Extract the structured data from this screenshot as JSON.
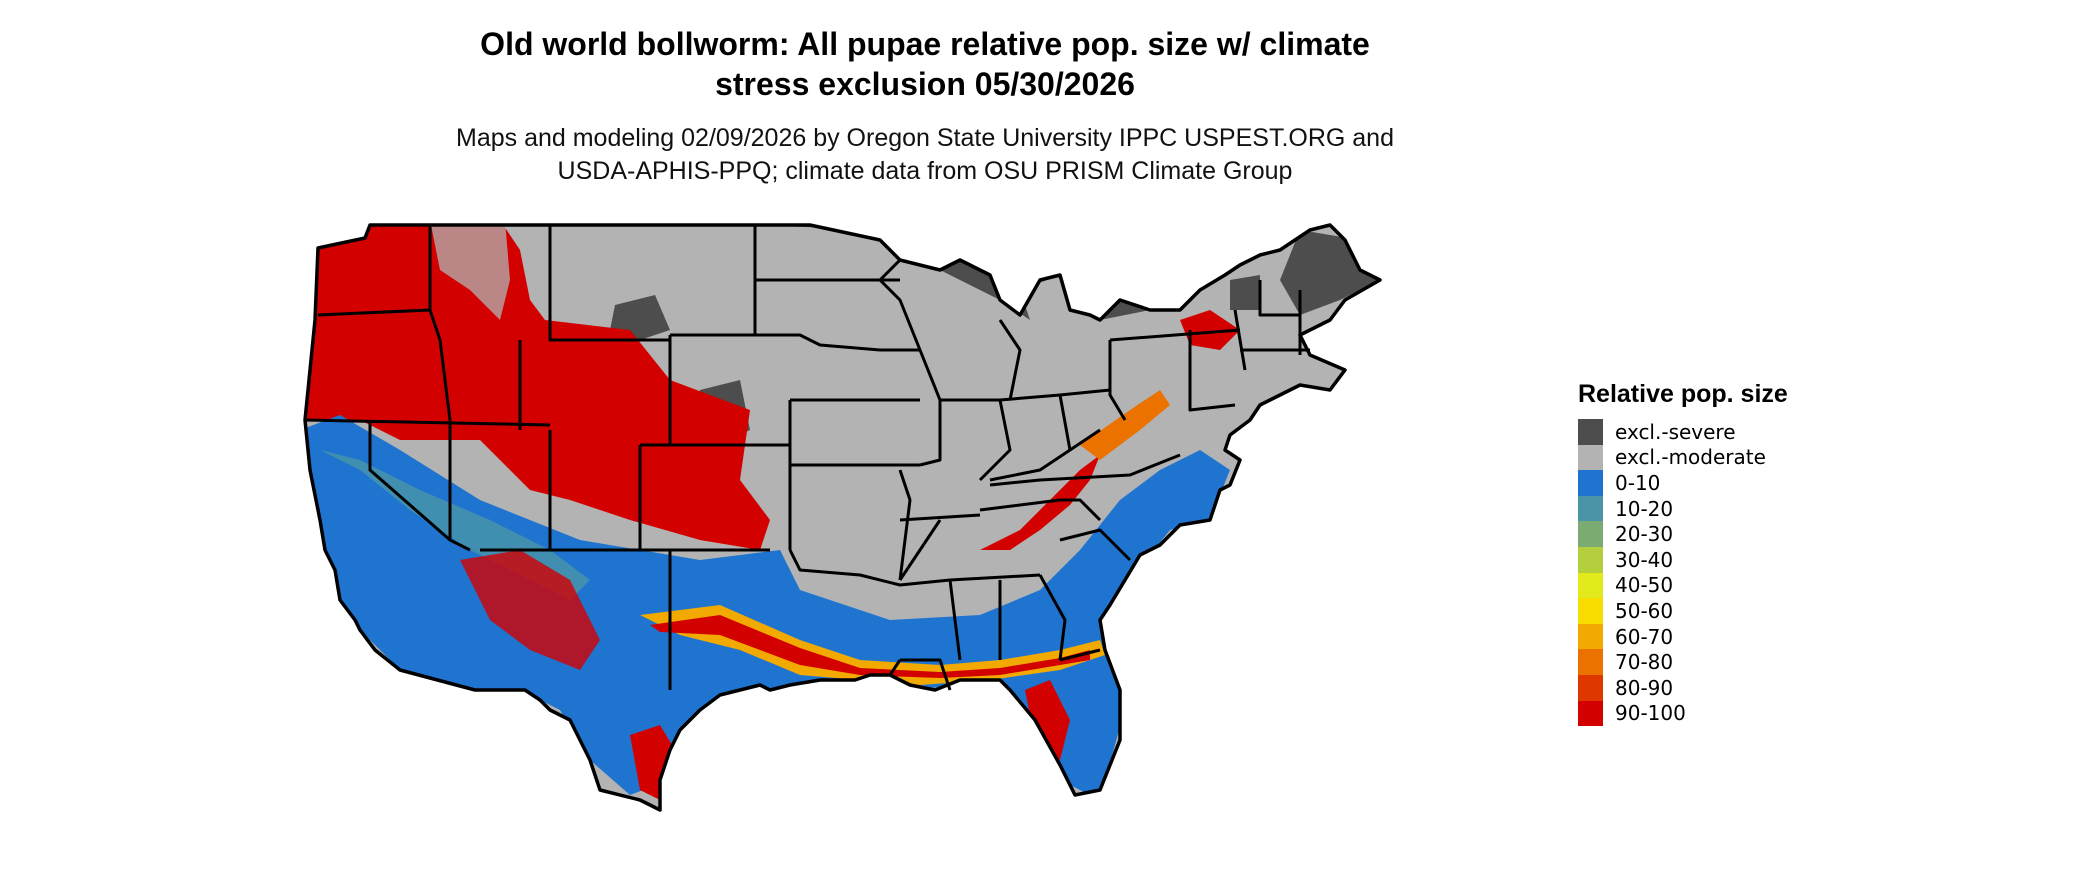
{
  "title_line1": "Old world bollworm: All pupae relative pop. size w/ climate",
  "title_line2": "stress exclusion 05/30/2026",
  "subtitle_line1": "Maps and modeling 02/09/2026 by Oregon State University IPPC USPEST.ORG and",
  "subtitle_line2": "USDA-APHIS-PPQ; climate data from OSU PRISM Climate Group",
  "legend": {
    "title": "Relative pop. size",
    "items": [
      {
        "label": "excl.-severe",
        "color": "#4d4d4d"
      },
      {
        "label": "excl.-moderate",
        "color": "#b3b3b3"
      },
      {
        "label": "0-10",
        "color": "#1f74d0"
      },
      {
        "label": "10-20",
        "color": "#4995a7"
      },
      {
        "label": "20-30",
        "color": "#7bab72"
      },
      {
        "label": "30-40",
        "color": "#b4cf3e"
      },
      {
        "label": "40-50",
        "color": "#e3ea1b"
      },
      {
        "label": "50-60",
        "color": "#f8de00"
      },
      {
        "label": "60-70",
        "color": "#f2aa00"
      },
      {
        "label": "70-80",
        "color": "#ec7200"
      },
      {
        "label": "80-90",
        "color": "#de3800"
      },
      {
        "label": "90-100",
        "color": "#d30000"
      }
    ]
  }
}
